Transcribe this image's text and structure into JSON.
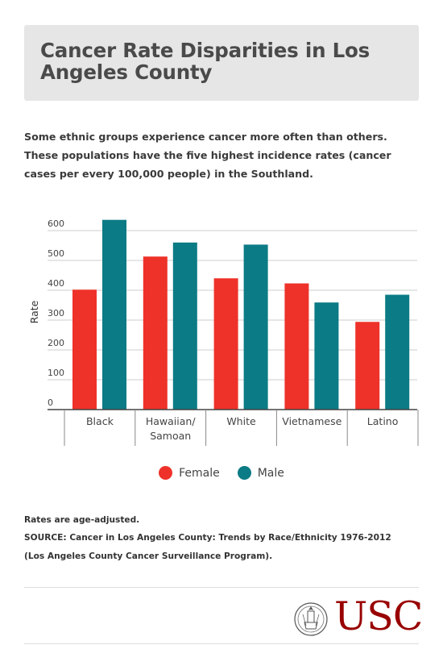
{
  "title": "Cancer Rate Disparities in Los Angeles County",
  "description": "Some ethnic groups experience cancer more often than others. These populations have the five highest incidence rates (cancer cases per every 100,000 people) in the Southland.",
  "colors": {
    "female": "#ee3229",
    "male": "#0b7b85",
    "title_bg": "#e6e6e6",
    "usc_red": "#990000"
  },
  "chart_data": {
    "type": "bar",
    "ylabel": "Rate",
    "xlabel": "",
    "ylim": [
      0,
      600
    ],
    "yticks": [
      "0",
      "100",
      "200",
      "300",
      "400",
      "500",
      "600"
    ],
    "grid": true,
    "legend_placement": "bottom-center",
    "categories": [
      {
        "lines": [
          "Black"
        ]
      },
      {
        "lines": [
          "Hawaiian/",
          "Samoan"
        ]
      },
      {
        "lines": [
          "White"
        ]
      },
      {
        "lines": [
          "Vietnamese"
        ]
      },
      {
        "lines": [
          "Latino"
        ]
      }
    ],
    "series": [
      {
        "name": "Female",
        "values": [
          402,
          513,
          440,
          423,
          294
        ]
      },
      {
        "name": "Male",
        "values": [
          636,
          560,
          553,
          359,
          385
        ]
      }
    ]
  },
  "notes": {
    "age_adjusted": "Rates are age-adjusted.",
    "source": "SOURCE: Cancer in Los Angeles County: Trends by Race/Ethnicity 1976-2012 (Los Angeles County Cancer Surveillance Program)."
  },
  "logo": {
    "text": "USC",
    "seal_icon": "usc-seal-icon"
  }
}
